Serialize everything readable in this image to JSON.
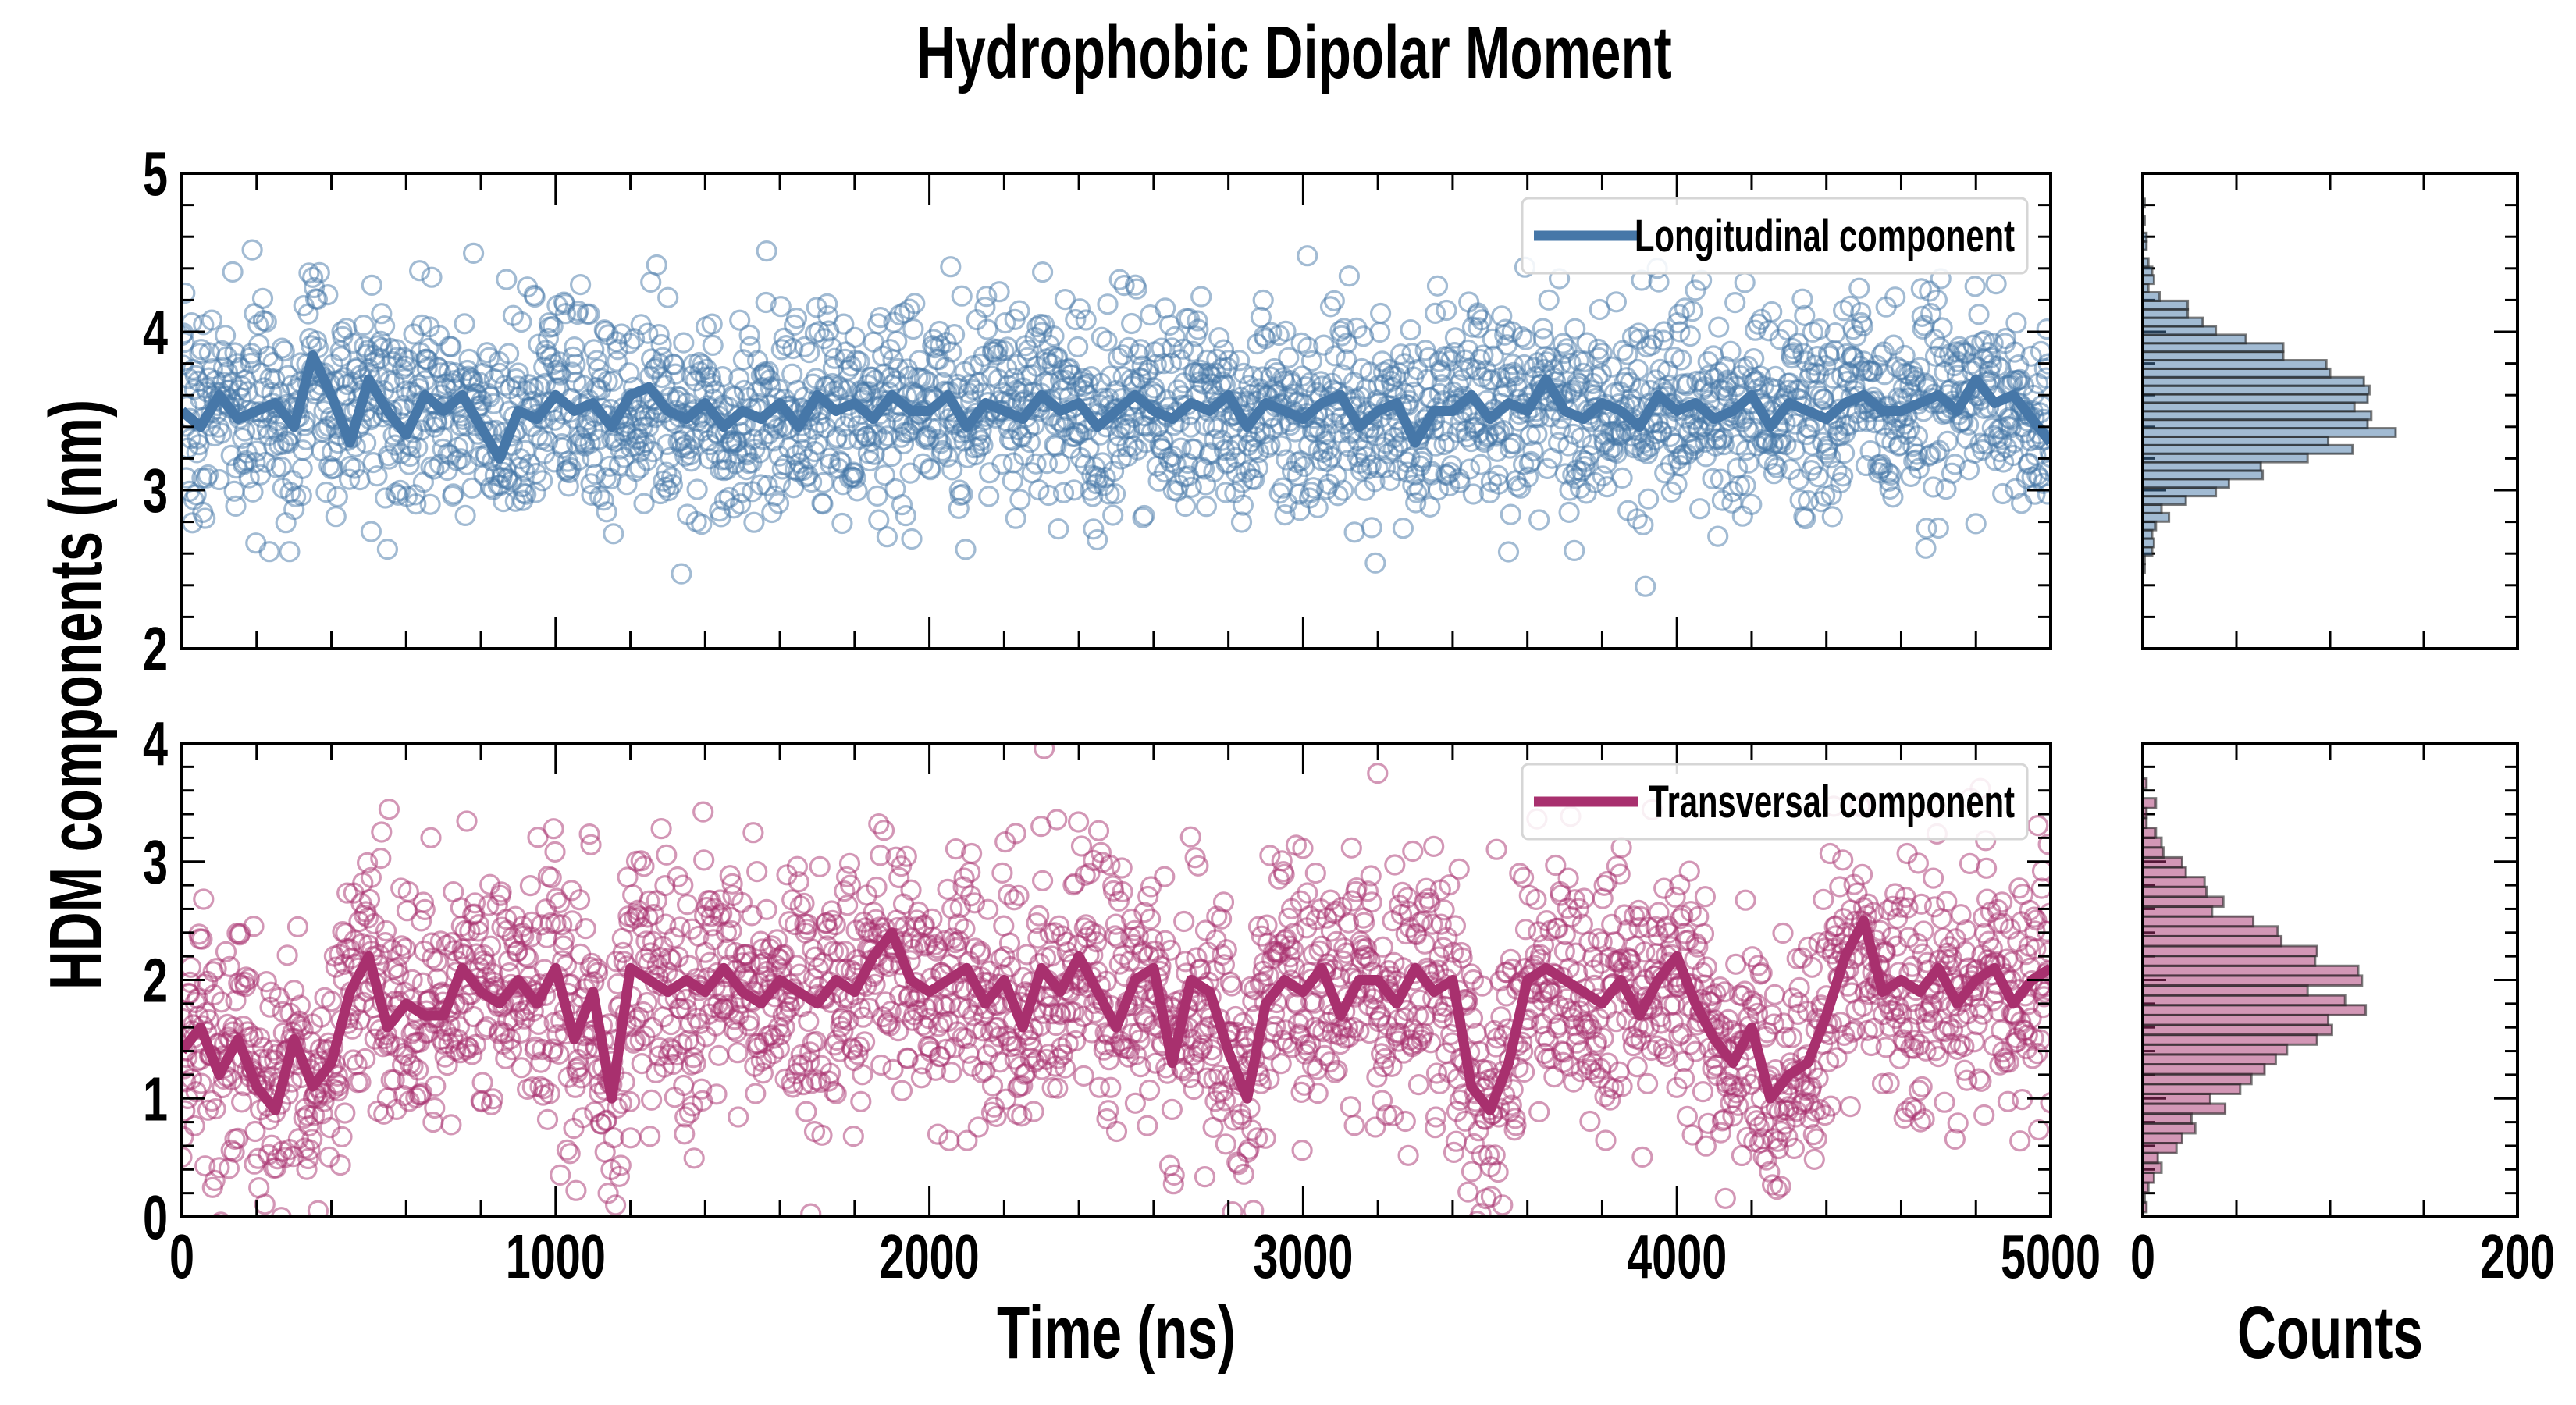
{
  "chart_data": {
    "title": "Hydrophobic Dipolar Moment",
    "ylabel": "HDM components (nm)",
    "xlabel": "Time (ns)",
    "hist_xlabel": "Counts",
    "xlim": [
      0,
      5000
    ],
    "xticks": [
      0,
      1000,
      2000,
      3000,
      4000,
      5000
    ],
    "hist_xlim": [
      0,
      200
    ],
    "hist_xticks_labeled": [
      0,
      200
    ],
    "panels": [
      {
        "type": "scatter+line",
        "legend": "Longitudinal component",
        "legend_position": "top-right",
        "color": "#4677a8",
        "ylim": [
          2,
          5
        ],
        "yticks": [
          2,
          3,
          4,
          5
        ],
        "scatter": {
          "n_points": 2500,
          "spread_std": 0.33,
          "seed": 7
        },
        "line_x_step": 50,
        "line": [
          3.5,
          3.4,
          3.6,
          3.45,
          3.5,
          3.55,
          3.4,
          3.85,
          3.6,
          3.3,
          3.7,
          3.5,
          3.35,
          3.6,
          3.5,
          3.6,
          3.4,
          3.2,
          3.5,
          3.45,
          3.6,
          3.5,
          3.55,
          3.4,
          3.6,
          3.65,
          3.5,
          3.45,
          3.55,
          3.4,
          3.5,
          3.45,
          3.55,
          3.4,
          3.6,
          3.5,
          3.55,
          3.45,
          3.6,
          3.5,
          3.5,
          3.6,
          3.4,
          3.55,
          3.5,
          3.45,
          3.6,
          3.5,
          3.55,
          3.4,
          3.5,
          3.6,
          3.5,
          3.45,
          3.55,
          3.5,
          3.6,
          3.4,
          3.55,
          3.5,
          3.45,
          3.55,
          3.6,
          3.4,
          3.5,
          3.55,
          3.3,
          3.5,
          3.5,
          3.6,
          3.45,
          3.55,
          3.5,
          3.7,
          3.5,
          3.45,
          3.55,
          3.5,
          3.4,
          3.6,
          3.5,
          3.55,
          3.45,
          3.5,
          3.6,
          3.4,
          3.55,
          3.5,
          3.45,
          3.55,
          3.6,
          3.5,
          3.5,
          3.55,
          3.6,
          3.5,
          3.7,
          3.55,
          3.6,
          3.45,
          3.3
        ],
        "hist": {
          "bin_min": 2.48,
          "bin_width": 0.0536,
          "counts": [
            1,
            1,
            5,
            6,
            5,
            7,
            14,
            10,
            23,
            39,
            46,
            64,
            63,
            88,
            112,
            99,
            135,
            120,
            122,
            113,
            120,
            121,
            118,
            100,
            98,
            75,
            75,
            55,
            39,
            32,
            24,
            24,
            9,
            3,
            6,
            5,
            3,
            0,
            2,
            2,
            0,
            1,
            0,
            1
          ]
        }
      },
      {
        "type": "scatter+line",
        "legend": "Transversal component",
        "legend_position": "top-right",
        "color": "#a8306e",
        "ylim": [
          0,
          4
        ],
        "yticks": [
          0,
          1,
          2,
          3,
          4
        ],
        "scatter": {
          "n_points": 2500,
          "spread_std": 0.55,
          "seed": 13
        },
        "line_x_step": 50,
        "line": [
          1.4,
          1.6,
          1.2,
          1.5,
          1.1,
          0.9,
          1.5,
          1.1,
          1.3,
          1.9,
          2.2,
          1.6,
          1.8,
          1.7,
          1.7,
          2.1,
          1.9,
          1.8,
          2.0,
          1.8,
          2.1,
          1.5,
          1.9,
          1.0,
          2.1,
          2.0,
          1.9,
          2.0,
          1.9,
          2.1,
          1.9,
          1.8,
          2.0,
          1.9,
          1.8,
          2.0,
          1.9,
          2.2,
          2.4,
          2.0,
          1.9,
          2.0,
          2.1,
          1.8,
          2.0,
          1.6,
          2.1,
          1.9,
          2.2,
          1.9,
          1.6,
          2.0,
          2.1,
          1.3,
          2.0,
          1.9,
          1.4,
          1.0,
          1.8,
          2.0,
          1.9,
          2.1,
          1.7,
          2.0,
          2.0,
          1.8,
          2.1,
          1.9,
          2.0,
          1.1,
          0.9,
          1.3,
          2.0,
          2.1,
          2.0,
          1.9,
          1.8,
          2.0,
          1.7,
          2.0,
          2.2,
          1.8,
          1.5,
          1.3,
          1.6,
          1.0,
          1.2,
          1.3,
          1.7,
          2.2,
          2.5,
          1.9,
          2.0,
          1.9,
          2.1,
          1.8,
          2.0,
          2.1,
          1.8,
          2.0,
          2.1
        ],
        "hist": {
          "bin_min": 0.04,
          "bin_width": 0.0832,
          "counts": [
            2,
            1,
            3,
            6,
            10,
            8,
            18,
            21,
            28,
            26,
            44,
            36,
            52,
            58,
            65,
            71,
            77,
            93,
            101,
            99,
            119,
            108,
            88,
            117,
            115,
            92,
            93,
            74,
            72,
            59,
            37,
            43,
            34,
            33,
            23,
            21,
            11,
            10,
            7,
            2,
            2,
            7,
            0,
            2
          ]
        }
      }
    ]
  }
}
